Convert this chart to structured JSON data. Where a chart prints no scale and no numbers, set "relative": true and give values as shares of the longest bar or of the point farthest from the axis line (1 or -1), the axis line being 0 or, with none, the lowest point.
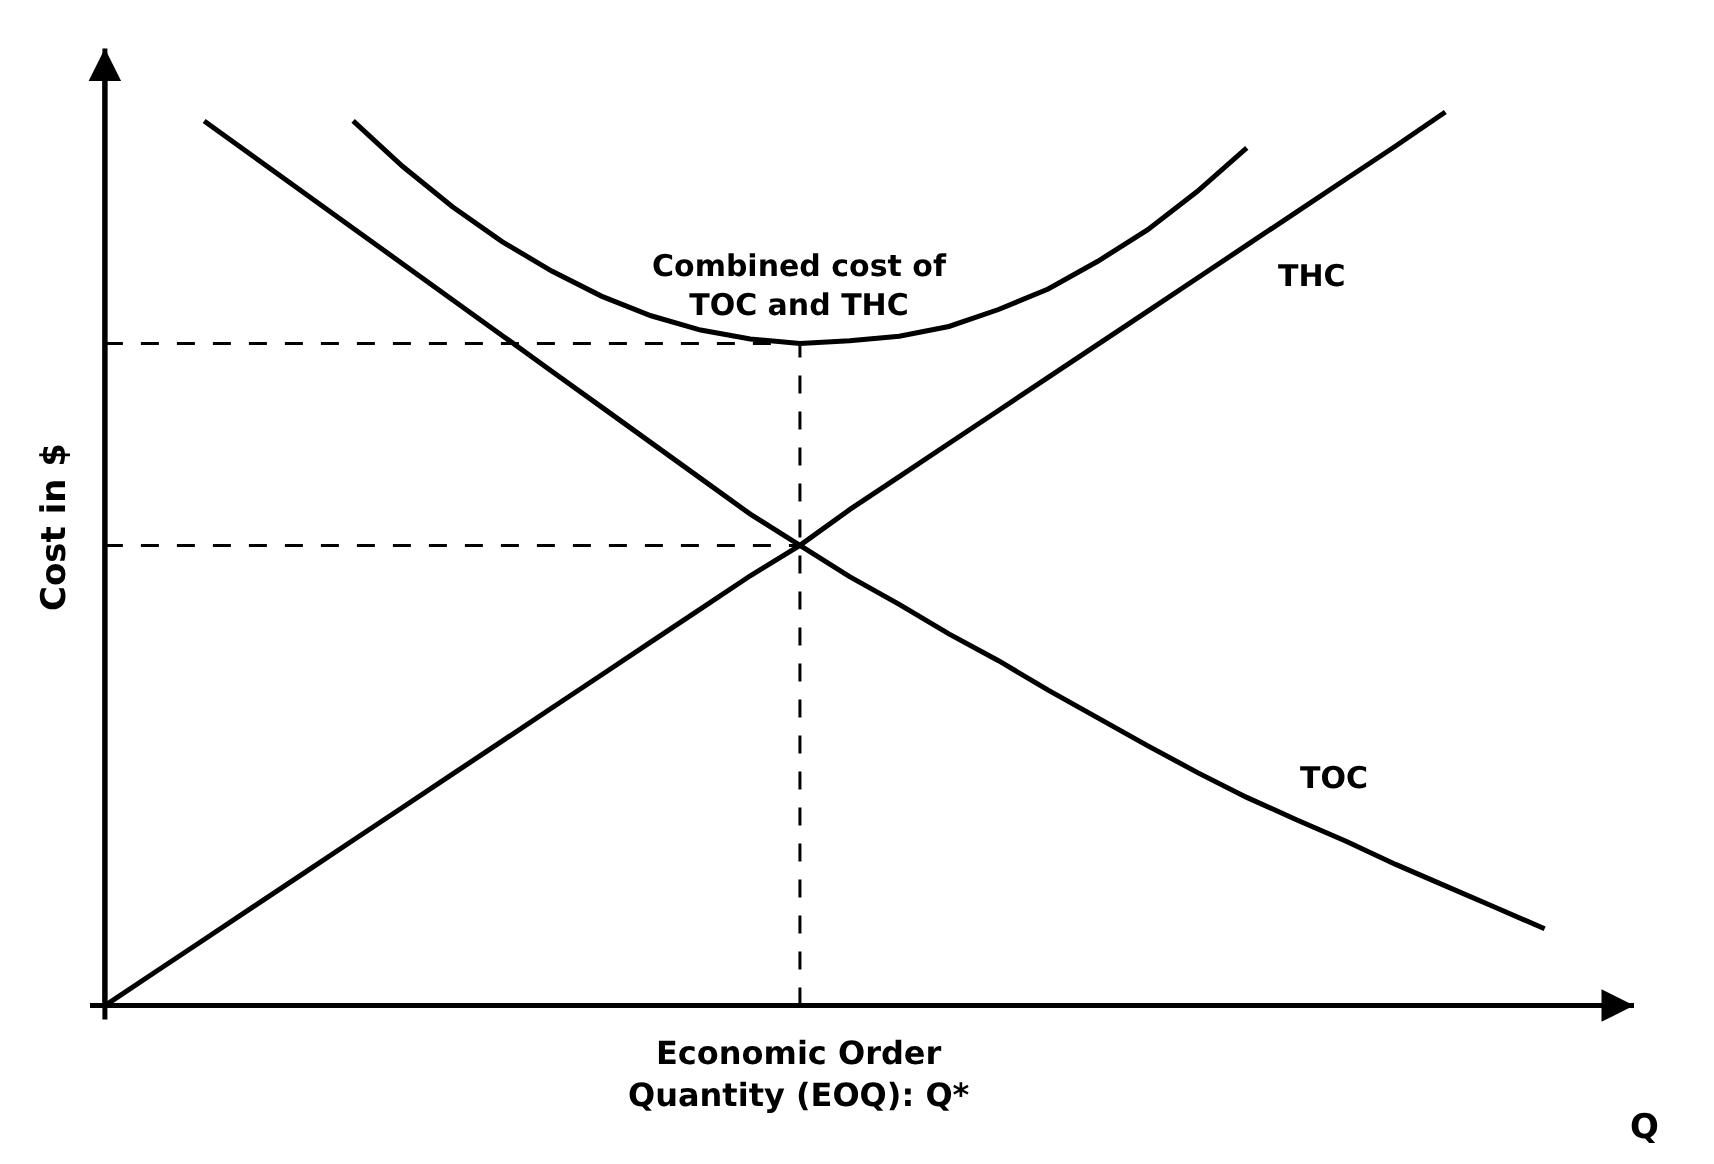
{
  "chart_data": {
    "type": "line",
    "relative": true,
    "ylabel": "Cost in $",
    "xlabel": "Q",
    "legend": false,
    "line_style": "solid",
    "marker": "none",
    "annotations": [
      "Economic Order\nQuantity (EOQ): Q*"
    ],
    "categories": [
      null,
      null,
      null,
      null,
      null,
      null,
      null,
      null,
      null,
      null,
      null,
      null,
      null,
      null,
      null,
      null,
      null,
      null,
      null,
      null,
      null,
      null,
      null,
      null,
      null,
      null,
      null,
      null,
      null,
      null
    ],
    "series": [
      {
        "name": "THC",
        "color": "#000000",
        "values": [
          0,
          0.037,
          0.074,
          0.111,
          0.148,
          0.185,
          0.222,
          0.259,
          0.296,
          0.333,
          0.37,
          0.407,
          0.444,
          0.481,
          0.515,
          0.555,
          0.592,
          0.629,
          0.666,
          0.703,
          0.74,
          0.777,
          0.814,
          0.851,
          0.888,
          0.925,
          0.962,
          1,
          null,
          null
        ]
      },
      {
        "name": "TOC",
        "color": "#000000",
        "values": [
          null,
          null,
          0.99,
          0.95,
          0.91,
          0.87,
          0.83,
          0.79,
          0.75,
          0.71,
          0.67,
          0.63,
          0.59,
          0.55,
          0.515,
          0.48,
          0.449,
          0.416,
          0.386,
          0.353,
          0.322,
          0.291,
          0.261,
          0.233,
          0.208,
          0.184,
          0.158,
          0.134,
          0.11,
          0.086
        ]
      },
      {
        "name": "Combined cost of\nTOC and THC",
        "color": "#000000",
        "values": [
          null,
          null,
          null,
          null,
          null,
          0.99,
          0.939,
          0.894,
          0.855,
          0.822,
          0.794,
          0.772,
          0.756,
          0.746,
          0.741,
          0.744,
          0.749,
          0.76,
          0.779,
          0.802,
          0.833,
          0.868,
          0.911,
          0.96,
          null,
          null,
          null,
          null,
          null,
          null
        ]
      }
    ],
    "ref_lines": [
      {
        "axis": "y",
        "value": 0.515,
        "color": "#000000",
        "line_style": "dashed"
      },
      {
        "axis": "y",
        "value": 0.741,
        "color": "#000000",
        "line_style": "dashed"
      }
    ]
  }
}
